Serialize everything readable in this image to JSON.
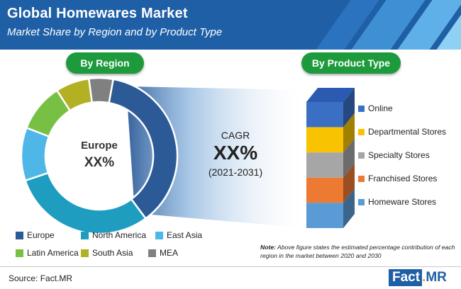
{
  "header": {
    "title": "Global Homewares Market",
    "subtitle": "Market Share by Region and by Product Type"
  },
  "region_pill": "By Region",
  "product_pill": "By Product Type",
  "donut_center": {
    "label": "Europe",
    "value": "XX%"
  },
  "cagr": {
    "label": "CAGR",
    "value": "XX%",
    "period": "(2021-2031)"
  },
  "region_legend": [
    {
      "label": "Europe",
      "color": "#2c5a96"
    },
    {
      "label": "North America",
      "color": "#1f9dc1"
    },
    {
      "label": "East Asia",
      "color": "#4fb7e8"
    },
    {
      "label": "Latin America",
      "color": "#78c043"
    },
    {
      "label": "South Asia",
      "color": "#b3b123"
    },
    {
      "label": "MEA",
      "color": "#808080"
    }
  ],
  "product_legend": [
    {
      "label": "Online",
      "color": "#3b6fc4"
    },
    {
      "label": "Departmental Stores",
      "color": "#f8c300"
    },
    {
      "label": "Specialty Stores",
      "color": "#a6a6a6"
    },
    {
      "label": "Franchised Stores",
      "color": "#ec7a32"
    },
    {
      "label": "Homeware Stores",
      "color": "#5b9bd5"
    }
  ],
  "note": {
    "lead": "Note:",
    "text": "Above figure states the estimated percentage contribution of each region in the market between 2020 and 2030"
  },
  "source": "Source: Fact.MR",
  "logo": {
    "part1": "Fact",
    "dot": ".",
    "part2": "MR"
  },
  "colors": {
    "banner": "#1f5fa6",
    "pill": "#1d9a3c"
  },
  "chart_data": [
    {
      "type": "pie",
      "variant": "donut",
      "categories": [
        "Europe",
        "North America",
        "East Asia",
        "Latin America",
        "South Asia",
        "MEA"
      ],
      "values": [
        37,
        30,
        11,
        10,
        7,
        5
      ],
      "center_label": "Europe",
      "center_value": "XX%"
    },
    {
      "type": "bar",
      "variant": "stacked-3d-column",
      "categories": [
        "Online",
        "Departmental Stores",
        "Specialty Stores",
        "Franchised Stores",
        "Homeware Stores"
      ],
      "values": [
        20,
        20,
        20,
        20,
        20
      ]
    }
  ]
}
